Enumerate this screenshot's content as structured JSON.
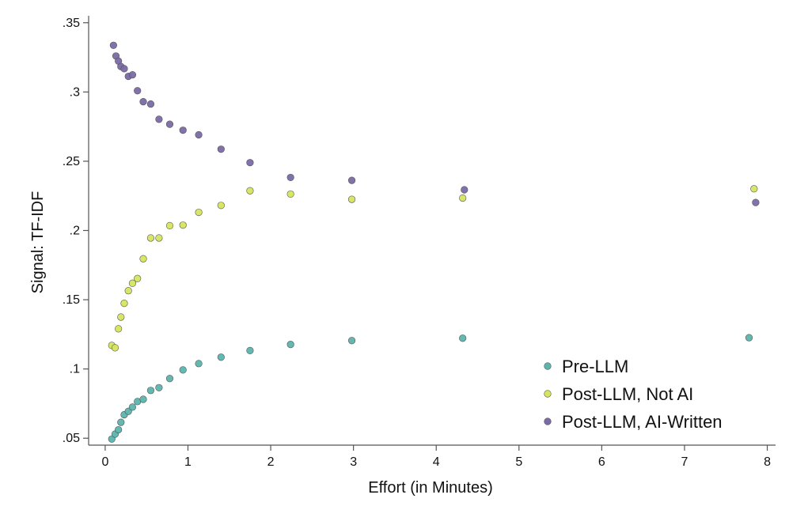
{
  "chart_data": {
    "type": "scatter",
    "title": "",
    "xlabel": "Effort (in Minutes)",
    "ylabel": "Signal: TF-IDF",
    "xlim": [
      -0.2,
      8.1
    ],
    "ylim": [
      0.045,
      0.355
    ],
    "xticks": [
      0,
      1,
      2,
      3,
      4,
      5,
      6,
      7,
      8
    ],
    "xtick_labels": [
      "0",
      "1",
      "2",
      "3",
      "4",
      "5",
      "6",
      "7",
      "8"
    ],
    "yticks": [
      0.05,
      0.1,
      0.15,
      0.2,
      0.25,
      0.3,
      0.35
    ],
    "ytick_labels": [
      ".05",
      ".1",
      ".15",
      ".2",
      ".25",
      ".3",
      ".35"
    ],
    "grid": false,
    "legend_position": "bottom-right",
    "series": [
      {
        "name": "Pre-LLM",
        "color": "#5bb5ad",
        "points": [
          [
            0.08,
            0.0494
          ],
          [
            0.12,
            0.053
          ],
          [
            0.16,
            0.0561
          ],
          [
            0.19,
            0.0615
          ],
          [
            0.23,
            0.067
          ],
          [
            0.28,
            0.0694
          ],
          [
            0.33,
            0.0725
          ],
          [
            0.39,
            0.0765
          ],
          [
            0.46,
            0.0781
          ],
          [
            0.55,
            0.0845
          ],
          [
            0.65,
            0.0865
          ],
          [
            0.78,
            0.0931
          ],
          [
            0.94,
            0.0993
          ],
          [
            1.13,
            0.1039
          ],
          [
            1.4,
            0.1085
          ],
          [
            1.75,
            0.1133
          ],
          [
            2.24,
            0.1177
          ],
          [
            2.98,
            0.1205
          ],
          [
            4.32,
            0.1222
          ],
          [
            7.78,
            0.1226
          ]
        ]
      },
      {
        "name": "Post-LLM, Not AI",
        "color": "#d5e55c",
        "points": [
          [
            0.08,
            0.117
          ],
          [
            0.12,
            0.1153
          ],
          [
            0.16,
            0.129
          ],
          [
            0.19,
            0.1375
          ],
          [
            0.23,
            0.1474
          ],
          [
            0.28,
            0.1565
          ],
          [
            0.33,
            0.1619
          ],
          [
            0.39,
            0.1653
          ],
          [
            0.46,
            0.1796
          ],
          [
            0.55,
            0.1946
          ],
          [
            0.65,
            0.1946
          ],
          [
            0.78,
            0.2035
          ],
          [
            0.94,
            0.2039
          ],
          [
            1.13,
            0.2131
          ],
          [
            1.4,
            0.2181
          ],
          [
            1.75,
            0.2287
          ],
          [
            2.24,
            0.2263
          ],
          [
            2.98,
            0.2225
          ],
          [
            4.32,
            0.2234
          ],
          [
            7.84,
            0.2301
          ]
        ]
      },
      {
        "name": "Post-LLM, AI-Written",
        "color": "#7b6aa8",
        "points": [
          [
            0.1,
            0.3337
          ],
          [
            0.13,
            0.326
          ],
          [
            0.16,
            0.3223
          ],
          [
            0.19,
            0.3184
          ],
          [
            0.23,
            0.3168
          ],
          [
            0.28,
            0.3113
          ],
          [
            0.33,
            0.3124
          ],
          [
            0.39,
            0.3009
          ],
          [
            0.46,
            0.293
          ],
          [
            0.55,
            0.2913
          ],
          [
            0.65,
            0.2803
          ],
          [
            0.78,
            0.2767
          ],
          [
            0.94,
            0.2724
          ],
          [
            1.13,
            0.2691
          ],
          [
            1.4,
            0.2587
          ],
          [
            1.75,
            0.249
          ],
          [
            2.24,
            0.2383
          ],
          [
            2.98,
            0.2362
          ],
          [
            4.34,
            0.2294
          ],
          [
            7.86,
            0.2202
          ]
        ]
      }
    ]
  }
}
